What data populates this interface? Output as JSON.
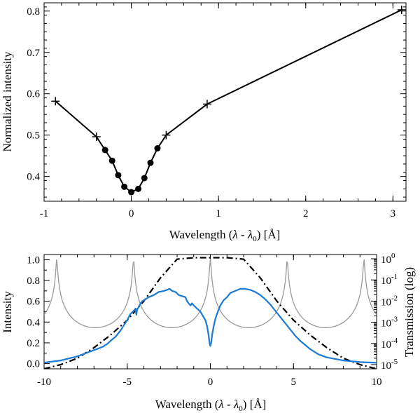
{
  "chart_data": [
    {
      "type": "line",
      "xlabel": "Wavelength (λ - λ₀) [Å]",
      "xlabel_parts": {
        "pre": "Wavelength (",
        "lam": "λ",
        "mid": " - ",
        "lam0": "λ",
        "sub0": "0",
        "post": ") [Å]"
      },
      "ylabel": "Normalized intensity",
      "xlim": [
        -1,
        3.15
      ],
      "ylim": [
        0.34,
        0.82
      ],
      "xticks": [
        -1,
        0,
        1,
        2,
        3
      ],
      "xtick_labels": [
        "-1",
        "0",
        "1",
        "2",
        "3"
      ],
      "yticks": [
        0.4,
        0.5,
        0.6,
        0.7,
        0.8
      ],
      "ytick_labels": [
        "0.4",
        "0.5",
        "0.6",
        "0.7",
        "0.8"
      ],
      "series": [
        {
          "name": "profile",
          "color": "#000000",
          "x": [
            -0.87,
            -0.4,
            -0.3,
            -0.22,
            -0.15,
            -0.08,
            0.0,
            0.08,
            0.15,
            0.22,
            0.3,
            0.4,
            0.87,
            3.1
          ],
          "y": [
            0.582,
            0.496,
            0.464,
            0.438,
            0.403,
            0.375,
            0.362,
            0.37,
            0.396,
            0.433,
            0.468,
            0.5,
            0.575,
            0.803
          ],
          "markers": [
            "plus",
            "plus",
            "dot",
            "dot",
            "dot",
            "dot",
            "dot",
            "dot",
            "dot",
            "dot",
            "dot",
            "plus",
            "plus",
            "plus"
          ]
        }
      ]
    },
    {
      "type": "line",
      "xlabel": "Wavelength (λ - λ₀) [Å]",
      "xlabel_parts": {
        "pre": "Wavelength (",
        "lam": "λ",
        "mid": " - ",
        "lam0": "λ",
        "sub0": "0",
        "post": ") [Å]"
      },
      "ylabel": "Intensity",
      "y2label": "Transmission (log)",
      "xlim": [
        -10,
        10
      ],
      "ylim": [
        -0.05,
        1.05
      ],
      "y2lim_log10": [
        -5.2,
        0.2
      ],
      "xticks": [
        -10,
        -5,
        0,
        5,
        10
      ],
      "xtick_labels": [
        "-10",
        "-5",
        "0",
        "5",
        "10"
      ],
      "yticks": [
        0.0,
        0.2,
        0.4,
        0.6,
        0.8,
        1.0
      ],
      "ytick_labels": [
        "0.0",
        "0.2",
        "0.4",
        "0.6",
        "0.8",
        "1.0"
      ],
      "y2ticks_log10": [
        0,
        -1,
        -2,
        -3,
        -4,
        -5
      ],
      "y2tick_labels": [
        {
          "base": "10",
          "exp": "0"
        },
        {
          "base": "10",
          "exp": "-1"
        },
        {
          "base": "10",
          "exp": "-2"
        },
        {
          "base": "10",
          "exp": "-3"
        },
        {
          "base": "10",
          "exp": "-4"
        },
        {
          "base": "10",
          "exp": "-5"
        }
      ],
      "series": [
        {
          "name": "solar spectrum",
          "color": "#1a7ad4",
          "x": [
            -10,
            -9,
            -8,
            -7,
            -6.5,
            -6.2,
            -6,
            -5.7,
            -5.4,
            -5.2,
            -5,
            -4.8,
            -4.6,
            -4.5,
            -4.45,
            -4.4,
            -4.3,
            -4.2,
            -4.1,
            -4,
            -3.7,
            -3.4,
            -3.1,
            -2.8,
            -2.6,
            -2.45,
            -2.3,
            -2.1,
            -1.9,
            -1.7,
            -1.5,
            -1.4,
            -1.3,
            -1.2,
            -1.1,
            -1,
            -0.8,
            -0.6,
            -0.45,
            -0.3,
            -0.2,
            -0.1,
            -0.05,
            0,
            0.05,
            0.1,
            0.2,
            0.3,
            0.45,
            0.6,
            0.8,
            1.0,
            1.2,
            1.5,
            1.8,
            2.1,
            2.4,
            2.7,
            3.0,
            3.3,
            3.6,
            3.9,
            4.2,
            4.5,
            4.8,
            5.1,
            5.4,
            5.7,
            6.0,
            6.5,
            7,
            8,
            9,
            10
          ],
          "y": [
            0.01,
            0.03,
            0.07,
            0.13,
            0.16,
            0.19,
            0.22,
            0.26,
            0.32,
            0.37,
            0.42,
            0.48,
            0.51,
            0.53,
            0.47,
            0.52,
            0.55,
            0.58,
            0.6,
            0.61,
            0.64,
            0.66,
            0.69,
            0.7,
            0.71,
            0.72,
            0.7,
            0.69,
            0.66,
            0.65,
            0.64,
            0.6,
            0.58,
            0.56,
            0.58,
            0.56,
            0.53,
            0.5,
            0.46,
            0.42,
            0.36,
            0.27,
            0.2,
            0.17,
            0.2,
            0.27,
            0.36,
            0.43,
            0.5,
            0.56,
            0.61,
            0.64,
            0.68,
            0.7,
            0.72,
            0.72,
            0.71,
            0.69,
            0.66,
            0.62,
            0.57,
            0.51,
            0.45,
            0.39,
            0.33,
            0.27,
            0.22,
            0.18,
            0.14,
            0.09,
            0.06,
            0.03,
            0.015,
            0.008
          ]
        },
        {
          "name": "filter transmission (dash-dot)",
          "axis": "log",
          "color": "#000000",
          "x": [
            -10,
            -9,
            -8,
            -7,
            -6,
            -5,
            -4,
            -3,
            -2,
            -1,
            0,
            1,
            2,
            3,
            4,
            5,
            6,
            7,
            8,
            9,
            10
          ],
          "y_log10": [
            -5.2,
            -5.0,
            -4.7,
            -4.2,
            -3.6,
            -2.9,
            -2.0,
            -0.9,
            -0.02,
            0.05,
            0.05,
            0.05,
            -0.02,
            -0.9,
            -2.0,
            -2.9,
            -3.6,
            -4.2,
            -4.7,
            -5.0,
            -5.2
          ]
        },
        {
          "name": "interference transmission (gray)",
          "axis": "log",
          "color": "#999999",
          "period": 4.62,
          "peak_log10": 0.0,
          "floor_log10": -4.9
        }
      ]
    }
  ]
}
